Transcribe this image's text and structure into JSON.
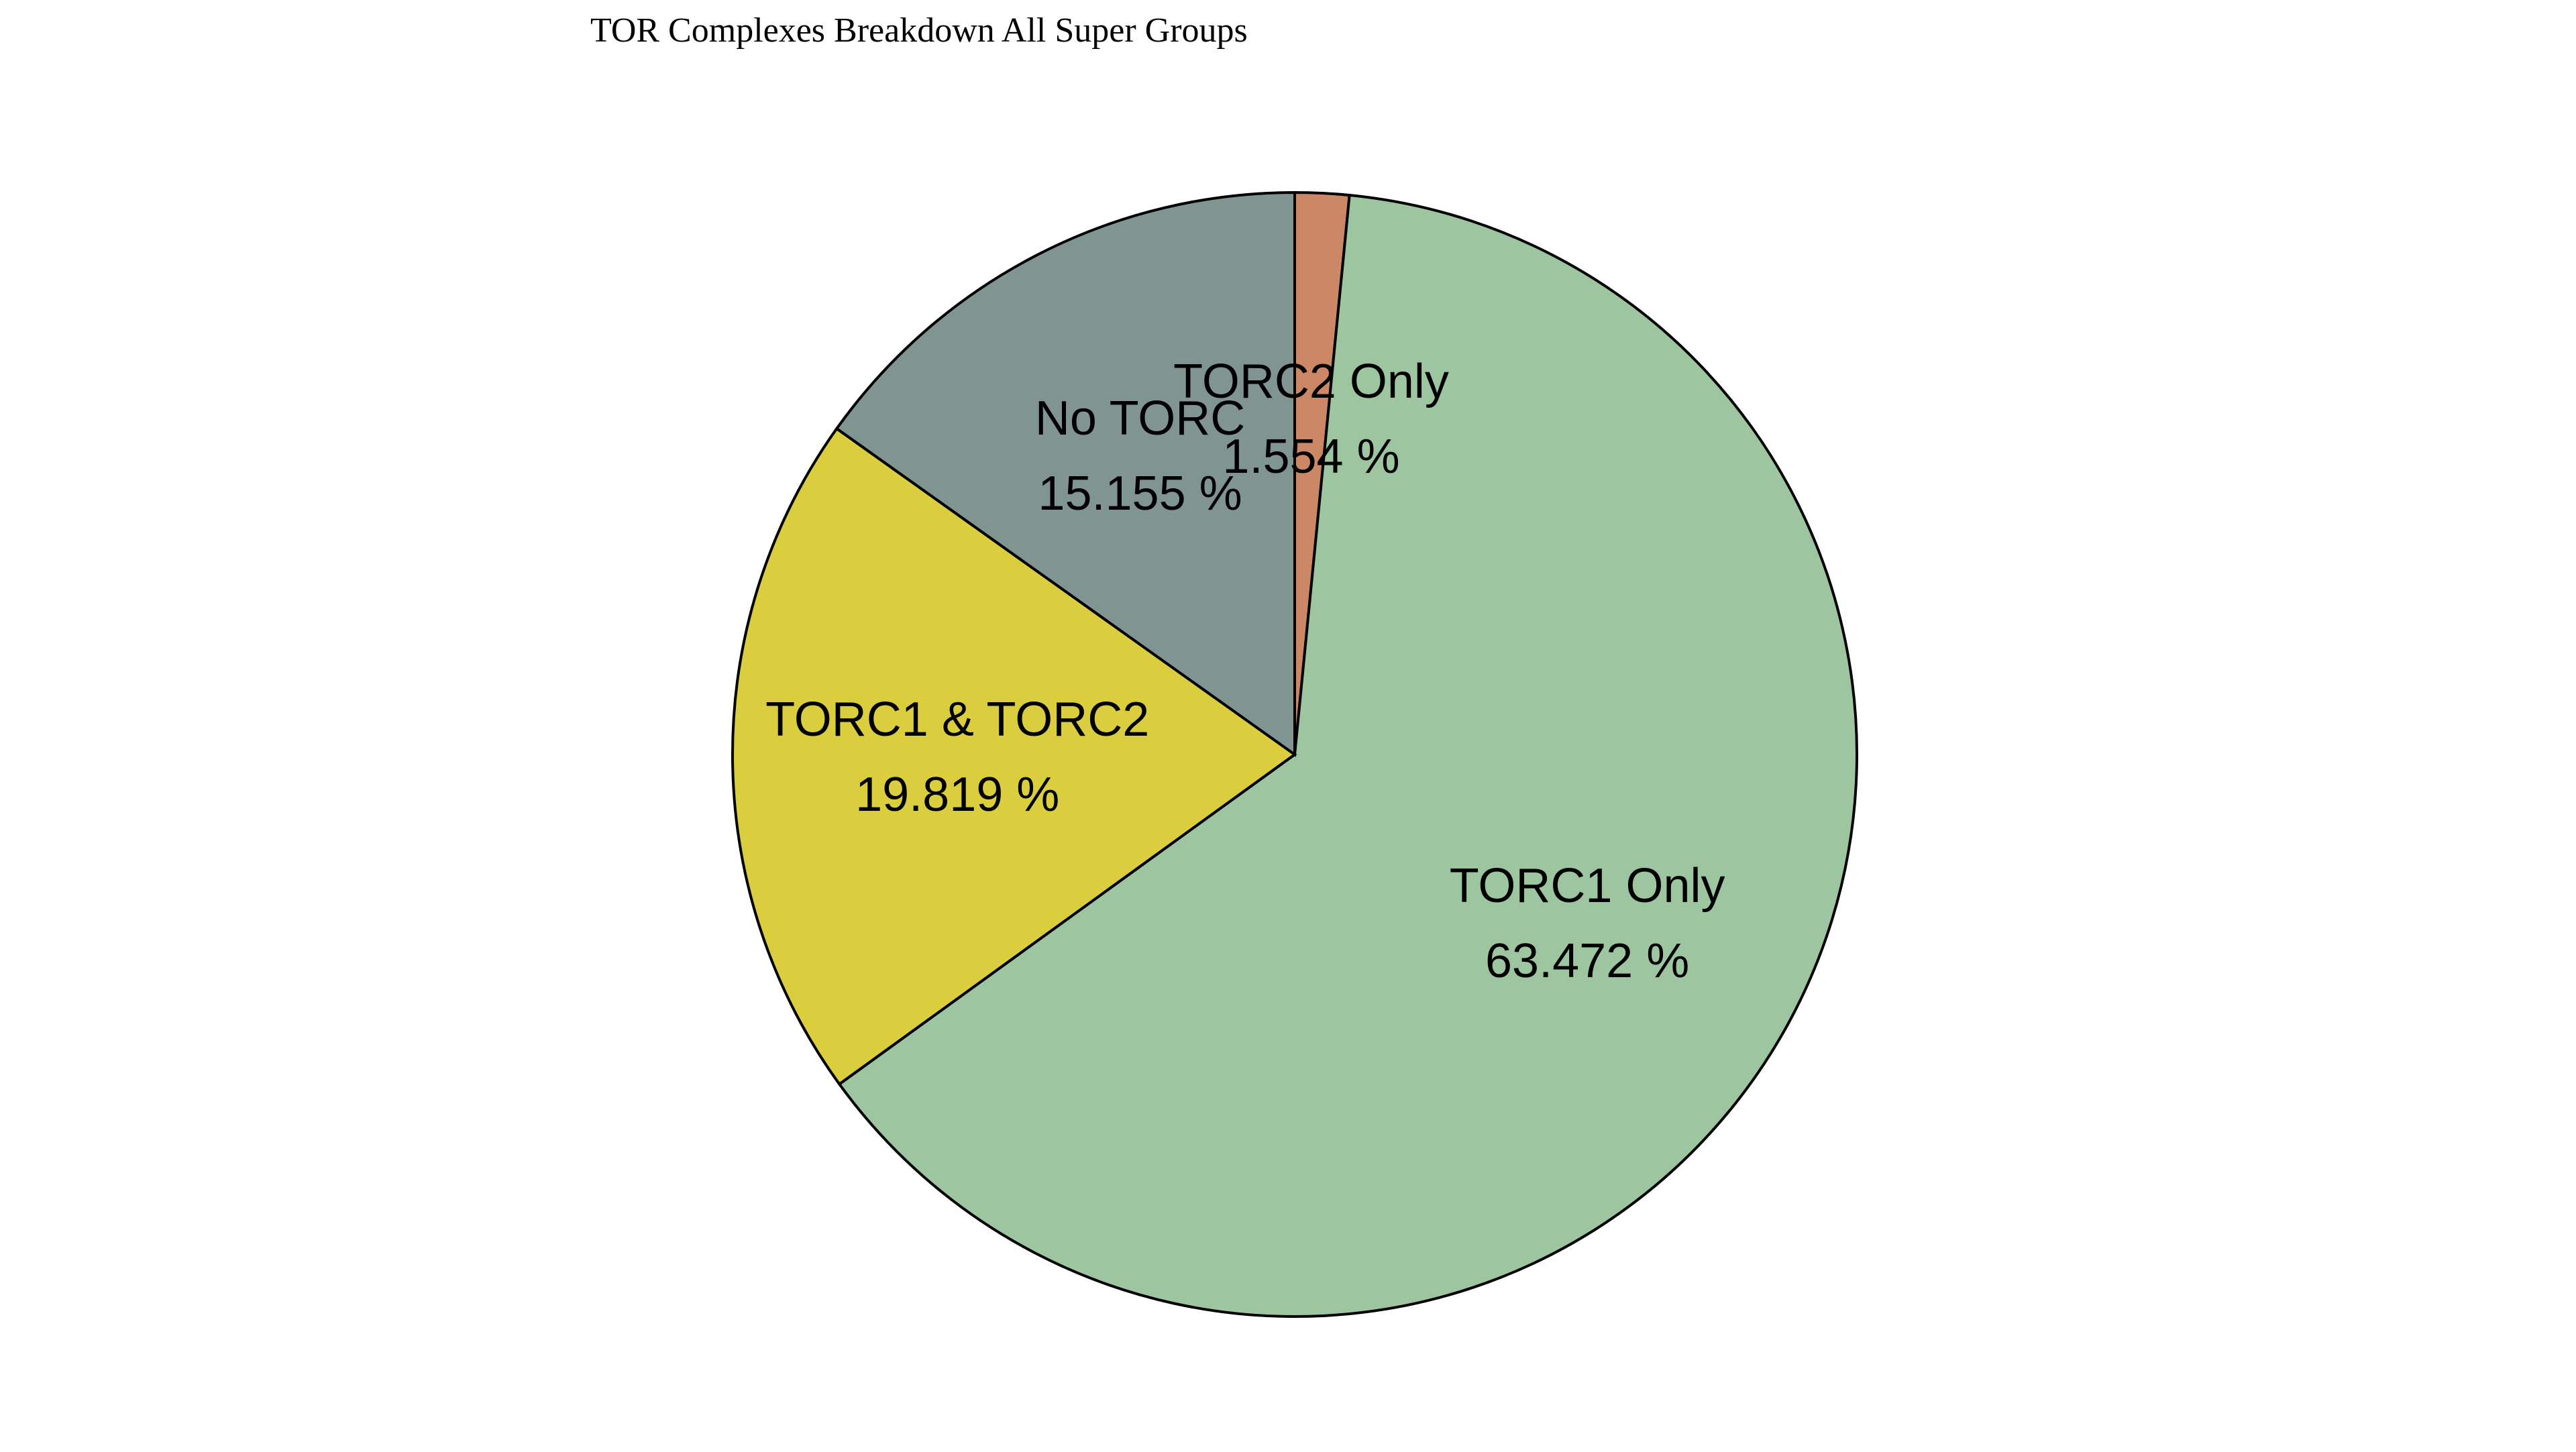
{
  "chart_data": {
    "type": "pie",
    "title": "TOR Complexes Breakdown All Super Groups",
    "start_angle_deg": 90,
    "direction": "clockwise",
    "slices": [
      {
        "label": "TORC2 Only",
        "value": 1.554,
        "value_text": "1.554 %",
        "color": "#CC8866"
      },
      {
        "label": "TORC1 Only",
        "value": 63.472,
        "value_text": "63.472 %",
        "color": "#9DC6A0"
      },
      {
        "label": "TORC1 & TORC2",
        "value": 19.819,
        "value_text": "19.819 %",
        "color": "#DACD3E"
      },
      {
        "label": "No TORC",
        "value": 15.155,
        "value_text": "15.155 %",
        "color": "#809492"
      }
    ]
  }
}
